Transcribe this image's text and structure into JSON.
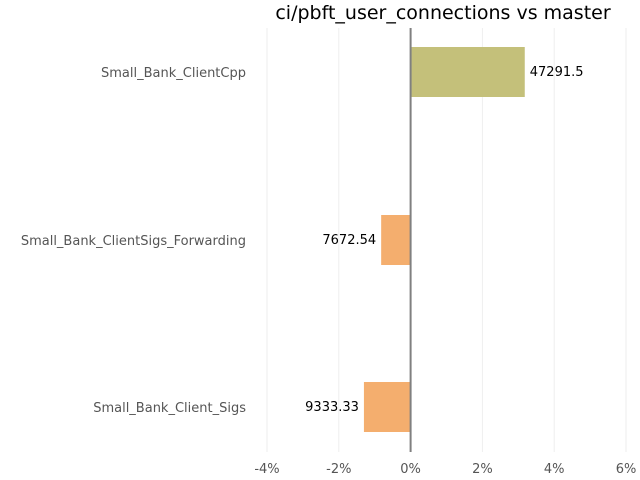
{
  "chart_data": {
    "type": "bar",
    "orientation": "horizontal",
    "title": "ci/pbft_user_connections vs master",
    "xlabel": "",
    "ylabel": "",
    "grid": true,
    "xlim": [
      -4,
      6
    ],
    "x_tick_values": [
      -4,
      -2,
      0,
      2,
      4,
      6
    ],
    "x_tick_labels": [
      "-4%",
      "-2%",
      "0%",
      "2%",
      "4%",
      "6%"
    ],
    "categories": [
      "Small_Bank_ClientCpp",
      "Small_Bank_ClientSigs_Forwarding",
      "Small_Bank_Client_Sigs"
    ],
    "values": [
      3.18,
      -0.82,
      -1.3
    ],
    "value_labels": [
      "47291.5",
      "7672.54",
      "9333.33"
    ],
    "colors": [
      "#c4c07a",
      "#f4ae6e",
      "#f4ae6e"
    ]
  }
}
